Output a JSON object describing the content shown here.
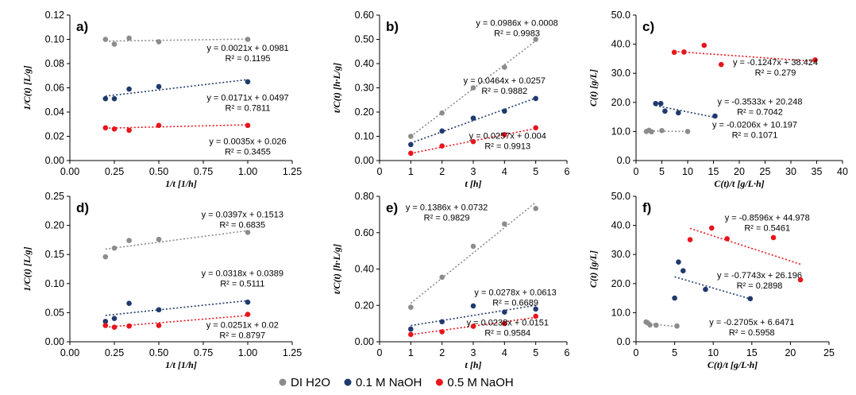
{
  "series_colors": {
    "DI H2O": "#8c8c8c",
    "0.1 M NaOH": "#1f3a6e",
    "0.5 M NaOH": "#e8151b"
  },
  "legend": [
    {
      "name": "DI H2O",
      "color": "#8c8c8c"
    },
    {
      "name": "0.1 M NaOH",
      "color": "#1f3a6e"
    },
    {
      "name": "0.5 M NaOH",
      "color": "#e8151b"
    }
  ],
  "chart_data": [
    {
      "label": "a)",
      "type": "scatter",
      "xlabel": "1/t  [1/h]",
      "ylabel": "1/C(t)  [L/g]",
      "xlim": [
        0,
        1.25
      ],
      "ylim": [
        0,
        0.12
      ],
      "xticks": [
        0,
        0.25,
        0.5,
        0.75,
        1,
        1.25
      ],
      "xticklabels": [
        "0.00",
        "0.25",
        "0.50",
        "0.75",
        "1.00",
        "1.25"
      ],
      "yticks": [
        0,
        0.02,
        0.04,
        0.06,
        0.08,
        0.1,
        0.12
      ],
      "yticklabels": [
        "0.00",
        "0.02",
        "0.04",
        "0.06",
        "0.08",
        "0.10",
        "0.12"
      ],
      "series": [
        {
          "name": "DI H2O",
          "x": [
            0.2,
            0.25,
            0.333,
            0.5,
            1.0
          ],
          "y": [
            0.1,
            0.096,
            0.101,
            0.098,
            0.1
          ],
          "trend": {
            "slope": 0.0021,
            "intercept": 0.0981,
            "x0": 0.2,
            "x1": 1.0
          },
          "eq": "y = 0.0021x + 0.0981",
          "r2": "R² = 0.1195",
          "eq_pos": [
            1.0,
            0.0905
          ]
        },
        {
          "name": "0.1 M NaOH",
          "x": [
            0.2,
            0.25,
            0.333,
            0.5,
            1.0
          ],
          "y": [
            0.051,
            0.051,
            0.059,
            0.061,
            0.065
          ],
          "trend": {
            "slope": 0.0171,
            "intercept": 0.0497,
            "x0": 0.2,
            "x1": 1.0
          },
          "eq": "y = 0.0171x + 0.0497",
          "r2": "R² = 0.7811",
          "eq_pos": [
            1.0,
            0.0495
          ]
        },
        {
          "name": "0.5 M NaOH",
          "x": [
            0.2,
            0.25,
            0.333,
            0.5,
            1.0
          ],
          "y": [
            0.027,
            0.026,
            0.025,
            0.029,
            0.029
          ],
          "trend": {
            "slope": 0.0035,
            "intercept": 0.026,
            "x0": 0.2,
            "x1": 1.0
          },
          "eq": "y = 0.0035x + 0.026",
          "r2": "R² = 0.3455",
          "eq_pos": [
            1.0,
            0.0135
          ]
        }
      ]
    },
    {
      "label": "b)",
      "type": "scatter",
      "xlabel": "t  [h]",
      "ylabel": "t/C(t)  [h·L/g]",
      "xlim": [
        0,
        6
      ],
      "ylim": [
        0,
        0.6
      ],
      "xticks": [
        0,
        1,
        2,
        3,
        4,
        5,
        6
      ],
      "xticklabels": [
        "0",
        "1",
        "2",
        "3",
        "4",
        "5",
        "6"
      ],
      "yticks": [
        0,
        0.1,
        0.2,
        0.3,
        0.4,
        0.5,
        0.6
      ],
      "yticklabels": [
        "0.00",
        "0.10",
        "0.20",
        "0.30",
        "0.40",
        "0.50",
        "0.60"
      ],
      "series": [
        {
          "name": "DI H2O",
          "x": [
            1,
            2,
            3,
            4,
            5
          ],
          "y": [
            0.1,
            0.196,
            0.3,
            0.385,
            0.5
          ],
          "trend": {
            "slope": 0.0986,
            "intercept": 0.0008,
            "x0": 1,
            "x1": 5
          },
          "eq": "y = 0.0986x + 0.0008",
          "r2": "R² = 0.9983",
          "eq_pos": [
            4.4,
            0.555
          ]
        },
        {
          "name": "0.1 M NaOH",
          "x": [
            1,
            2,
            3,
            4,
            5
          ],
          "y": [
            0.066,
            0.122,
            0.175,
            0.204,
            0.256
          ],
          "trend": {
            "slope": 0.0464,
            "intercept": 0.0257,
            "x0": 1,
            "x1": 5
          },
          "eq": "y = 0.0464x + 0.0257",
          "r2": "R² = 0.9882",
          "eq_pos": [
            4.0,
            0.318
          ]
        },
        {
          "name": "0.5 M NaOH",
          "x": [
            1,
            2,
            3,
            4,
            5
          ],
          "y": [
            0.03,
            0.06,
            0.078,
            0.107,
            0.135
          ],
          "trend": {
            "slope": 0.0257,
            "intercept": 0.004,
            "x0": 1,
            "x1": 5
          },
          "eq": "y = 0.0257x + 0.004",
          "r2": "R² = 0.9913",
          "eq_pos": [
            4.1,
            0.09
          ]
        }
      ]
    },
    {
      "label": "c)",
      "type": "scatter",
      "xlabel": "C(t)/t  [g/L·h]",
      "ylabel": "C(t)  [g/L]",
      "xlim": [
        0,
        40
      ],
      "ylim": [
        0,
        50
      ],
      "xticks": [
        0,
        5,
        10,
        15,
        20,
        25,
        30,
        35,
        40
      ],
      "xticklabels": [
        "0",
        "5",
        "10",
        "15",
        "20",
        "25",
        "30",
        "35",
        "40"
      ],
      "yticks": [
        0,
        10,
        20,
        30,
        40,
        50
      ],
      "yticklabels": [
        "0.0",
        "10.0",
        "20.0",
        "30.0",
        "40.0",
        "50.0"
      ],
      "series": [
        {
          "name": "DI H2O",
          "x": [
            2.0,
            2.5,
            3.0,
            5.0,
            10.0
          ],
          "y": [
            10.0,
            10.4,
            9.9,
            10.3,
            10.0
          ],
          "trend": {
            "slope": -0.0206,
            "intercept": 10.197,
            "x0": 2,
            "x1": 10
          },
          "eq": "y = -0.0206x + 10.197",
          "r2": "R² = 0.1071",
          "eq_pos": [
            23,
            11.3
          ]
        },
        {
          "name": "0.1 M NaOH",
          "x": [
            3.8,
            4.8,
            5.6,
            8.2,
            15.3
          ],
          "y": [
            19.6,
            19.6,
            17.0,
            16.4,
            15.3
          ],
          "trend": {
            "slope": -0.3533,
            "intercept": 20.248,
            "x0": 3.8,
            "x1": 15.3
          },
          "eq": "y = -0.3533x + 20.248",
          "r2": "R² = 0.7042",
          "eq_pos": [
            24,
            19.3
          ]
        },
        {
          "name": "0.5 M NaOH",
          "x": [
            7.4,
            9.3,
            13.2,
            16.5,
            34.7
          ],
          "y": [
            37.2,
            37.3,
            39.6,
            33.0,
            34.6
          ],
          "trend": {
            "slope": -0.1247,
            "intercept": 38.424,
            "x0": 7.4,
            "x1": 34.7
          },
          "eq": "y = -0.1247x + 38.424",
          "r2": "R² = 0.279",
          "eq_pos": [
            27,
            32.8
          ]
        }
      ]
    },
    {
      "label": "d)",
      "type": "scatter",
      "xlabel": "1/t  [1/h]",
      "ylabel": "1/C(t)  [L/g]",
      "xlim": [
        0,
        1.25
      ],
      "ylim": [
        0,
        0.25
      ],
      "xticks": [
        0,
        0.25,
        0.5,
        0.75,
        1,
        1.25
      ],
      "xticklabels": [
        "0.00",
        "0.25",
        "0.50",
        "0.75",
        "1.00",
        "1.25"
      ],
      "yticks": [
        0,
        0.05,
        0.1,
        0.15,
        0.2,
        0.25
      ],
      "yticklabels": [
        "0.00",
        "0.05",
        "0.10",
        "0.15",
        "0.20",
        "0.25"
      ],
      "series": [
        {
          "name": "DI H2O",
          "x": [
            0.2,
            0.25,
            0.333,
            0.5,
            1.0
          ],
          "y": [
            0.146,
            0.161,
            0.174,
            0.176,
            0.188
          ],
          "trend": {
            "slope": 0.0397,
            "intercept": 0.1513,
            "x0": 0.2,
            "x1": 1.0
          },
          "eq": "y = 0.0397x + 0.1513",
          "r2": "R² = 0.6835",
          "eq_pos": [
            0.97,
            0.214
          ]
        },
        {
          "name": "0.1 M NaOH",
          "x": [
            0.2,
            0.25,
            0.333,
            0.5,
            1.0
          ],
          "y": [
            0.035,
            0.04,
            0.066,
            0.055,
            0.068
          ],
          "trend": {
            "slope": 0.0318,
            "intercept": 0.0389,
            "x0": 0.2,
            "x1": 1.0
          },
          "eq": "y = 0.0318x + 0.0389",
          "r2": "R² = 0.5111",
          "eq_pos": [
            0.97,
            0.113
          ]
        },
        {
          "name": "0.5 M NaOH",
          "x": [
            0.2,
            0.25,
            0.333,
            0.5,
            1.0
          ],
          "y": [
            0.028,
            0.025,
            0.027,
            0.028,
            0.047
          ],
          "trend": {
            "slope": 0.0251,
            "intercept": 0.02,
            "x0": 0.2,
            "x1": 1.0
          },
          "eq": "y = 0.0251x + 0.02",
          "r2": "R² = 0.8797",
          "eq_pos": [
            0.97,
            0.024
          ]
        }
      ]
    },
    {
      "label": "e)",
      "type": "scatter",
      "xlabel": "t  [h]",
      "ylabel": "t/C(t)  [h·L/g]",
      "xlim": [
        0,
        6
      ],
      "ylim": [
        0,
        0.8
      ],
      "xticks": [
        0,
        1,
        2,
        3,
        4,
        5,
        6
      ],
      "xticklabels": [
        "0",
        "1",
        "2",
        "3",
        "4",
        "5",
        "6"
      ],
      "yticks": [
        0,
        0.2,
        0.4,
        0.6,
        0.8
      ],
      "yticklabels": [
        "0.00",
        "0.20",
        "0.40",
        "0.60",
        "0.80"
      ],
      "series": [
        {
          "name": "DI H2O",
          "x": [
            1,
            2,
            3,
            4,
            5
          ],
          "y": [
            0.19,
            0.355,
            0.525,
            0.648,
            0.733
          ],
          "trend": {
            "slope": 0.1386,
            "intercept": 0.0732,
            "x0": 1,
            "x1": 5
          },
          "eq": "y = 0.1386x + 0.0732",
          "r2": "R² = 0.9829",
          "eq_pos": [
            2.15,
            0.724
          ]
        },
        {
          "name": "0.1 M NaOH",
          "x": [
            1,
            2,
            3,
            4,
            5
          ],
          "y": [
            0.07,
            0.11,
            0.197,
            0.163,
            0.18
          ],
          "trend": {
            "slope": 0.0278,
            "intercept": 0.0613,
            "x0": 1,
            "x1": 5
          },
          "eq": "y = 0.0278x + 0.0613",
          "r2": "R² = 0.6689",
          "eq_pos": [
            4.35,
            0.255
          ]
        },
        {
          "name": "0.5 M NaOH",
          "x": [
            1,
            2,
            3,
            4,
            5
          ],
          "y": [
            0.04,
            0.055,
            0.085,
            0.1,
            0.14
          ],
          "trend": {
            "slope": 0.0238,
            "intercept": 0.0151,
            "x0": 1,
            "x1": 5
          },
          "eq": "y = 0.0238x + 0.0151",
          "r2": "R² = 0.9584",
          "eq_pos": [
            4.1,
            0.09
          ]
        }
      ]
    },
    {
      "label": "f)",
      "type": "scatter",
      "xlabel": "C(t)/t  [g/L·h]",
      "ylabel": "C(t)  [g/L]",
      "xlim": [
        0,
        25
      ],
      "ylim": [
        0,
        50
      ],
      "xticks": [
        0,
        5,
        10,
        15,
        20,
        25
      ],
      "xticklabels": [
        "0",
        "5",
        "10",
        "15",
        "20",
        "25"
      ],
      "yticks": [
        0,
        10,
        20,
        30,
        40,
        50
      ],
      "yticklabels": [
        "0.0",
        "10.0",
        "20.0",
        "30.0",
        "40.0",
        "50.0"
      ],
      "series": [
        {
          "name": "DI H2O",
          "x": [
            1.3,
            1.5,
            1.8,
            2.6,
            5.3
          ],
          "y": [
            6.8,
            6.5,
            5.8,
            5.7,
            5.4
          ],
          "trend": {
            "slope": -0.2705,
            "intercept": 6.6471,
            "x0": 1.3,
            "x1": 5.3
          },
          "eq": "y = -0.2705x + 6.6471",
          "r2": "R² = 0.5958",
          "eq_pos": [
            15,
            5.7
          ]
        },
        {
          "name": "0.1 M NaOH",
          "x": [
            5.0,
            5.5,
            6.1,
            9.0,
            14.8
          ],
          "y": [
            15.0,
            27.4,
            24.4,
            18.0,
            14.8
          ],
          "trend": {
            "slope": -0.7743,
            "intercept": 26.196,
            "x0": 5.0,
            "x1": 14.8
          },
          "eq": "y = -0.7743x + 26.196",
          "r2": "R² = 0.2898",
          "eq_pos": [
            16,
            21.8
          ]
        },
        {
          "name": "0.5 M NaOH",
          "x": [
            7.0,
            9.8,
            11.8,
            17.8,
            21.3
          ],
          "y": [
            35.1,
            39.1,
            35.4,
            35.8,
            21.3
          ],
          "trend": {
            "slope": -0.8596,
            "intercept": 44.978,
            "x0": 7.0,
            "x1": 21.3
          },
          "eq": "y = -0.8596x + 44.978",
          "r2": "R² = 0.5461",
          "eq_pos": [
            17,
            41.7
          ]
        }
      ]
    }
  ]
}
